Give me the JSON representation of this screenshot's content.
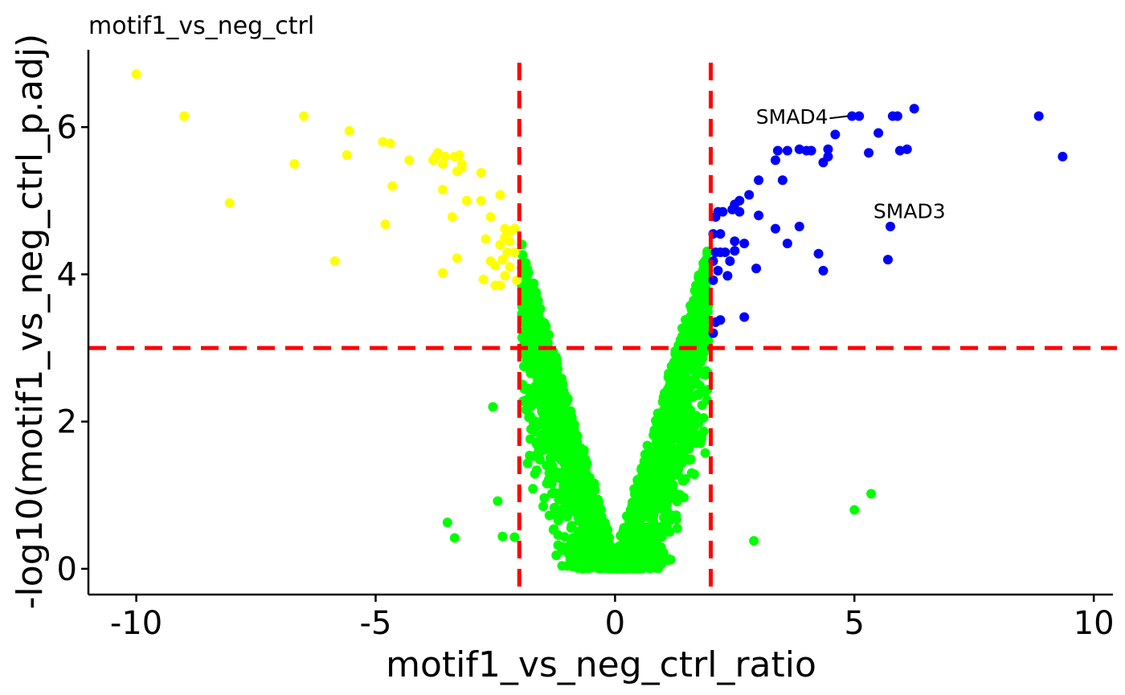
{
  "chart_data": {
    "type": "scatter",
    "title": "motif1_vs_neg_ctrl",
    "xlabel": "motif1_vs_neg_ctrl_ratio",
    "ylabel": "-log10(motif1_vs_neg_ctrl_p.adj)",
    "xlim": [
      -11,
      10.4
    ],
    "ylim": [
      -0.35,
      7.05
    ],
    "xticks": [
      -10,
      -5,
      0,
      5,
      10
    ],
    "xtick_labels": [
      "-10",
      "-5",
      "0",
      "5",
      "10"
    ],
    "yticks": [
      0,
      2,
      4,
      6
    ],
    "ytick_labels": [
      "0",
      "2",
      "4",
      "6"
    ],
    "grid": false,
    "legend": "none",
    "thresholds": {
      "x": [
        -2,
        2
      ],
      "y": 3,
      "color": "#ff0000",
      "style": "dashed"
    },
    "colors": {
      "down": "#ffff00",
      "up": "#0000ff",
      "ns": "#00ff00"
    },
    "series": [
      {
        "group": "down",
        "color": "#ffff00",
        "points": [
          [
            -10.0,
            6.72
          ],
          [
            -9.0,
            6.15
          ],
          [
            -6.5,
            6.15
          ],
          [
            -5.55,
            5.95
          ],
          [
            -6.7,
            5.5
          ],
          [
            -5.6,
            5.62
          ],
          [
            -8.05,
            4.97
          ],
          [
            -5.85,
            4.18
          ],
          [
            -4.7,
            5.78
          ],
          [
            -4.85,
            5.8
          ],
          [
            -4.3,
            5.55
          ],
          [
            -4.8,
            4.68
          ],
          [
            -4.65,
            5.2
          ],
          [
            -3.75,
            5.6
          ],
          [
            -3.7,
            5.65
          ],
          [
            -3.55,
            5.6
          ],
          [
            -3.8,
            5.55
          ],
          [
            -3.6,
            5.5
          ],
          [
            -3.35,
            5.6
          ],
          [
            -3.25,
            5.62
          ],
          [
            -3.2,
            5.5
          ],
          [
            -3.3,
            5.4
          ],
          [
            -3.2,
            5.45
          ],
          [
            -2.8,
            5.38
          ],
          [
            -3.6,
            5.15
          ],
          [
            -3.1,
            5.0
          ],
          [
            -2.4,
            5.08
          ],
          [
            -2.8,
            5.0
          ],
          [
            -3.4,
            4.78
          ],
          [
            -2.6,
            4.78
          ],
          [
            -2.3,
            4.62
          ],
          [
            -2.2,
            4.58
          ],
          [
            -2.1,
            4.62
          ],
          [
            -2.3,
            4.5
          ],
          [
            -2.2,
            4.45
          ],
          [
            -2.7,
            4.48
          ],
          [
            -2.4,
            4.4
          ],
          [
            -2.25,
            4.3
          ],
          [
            -2.1,
            4.3
          ],
          [
            -3.3,
            4.22
          ],
          [
            -2.6,
            4.18
          ],
          [
            -2.35,
            4.2
          ],
          [
            -2.2,
            4.1
          ],
          [
            -2.5,
            4.12
          ],
          [
            -3.6,
            4.02
          ],
          [
            -2.4,
            3.85
          ],
          [
            -2.5,
            3.85
          ],
          [
            -2.75,
            3.93
          ],
          [
            -2.3,
            3.98
          ],
          [
            -2.05,
            3.92
          ]
        ]
      },
      {
        "group": "up",
        "color": "#0000ff",
        "points": [
          [
            4.95,
            6.15
          ],
          [
            5.1,
            6.15
          ],
          [
            5.8,
            6.15
          ],
          [
            5.9,
            6.15
          ],
          [
            6.25,
            6.25
          ],
          [
            8.85,
            6.15
          ],
          [
            9.35,
            5.6
          ],
          [
            5.5,
            5.92
          ],
          [
            4.6,
            5.9
          ],
          [
            5.3,
            5.65
          ],
          [
            5.95,
            5.68
          ],
          [
            6.1,
            5.7
          ],
          [
            3.4,
            5.68
          ],
          [
            3.6,
            5.68
          ],
          [
            3.85,
            5.7
          ],
          [
            4.0,
            5.68
          ],
          [
            4.1,
            5.68
          ],
          [
            4.45,
            5.7
          ],
          [
            4.45,
            5.6
          ],
          [
            4.35,
            5.52
          ],
          [
            3.35,
            5.55
          ],
          [
            3.0,
            5.28
          ],
          [
            2.8,
            5.08
          ],
          [
            2.6,
            5.0
          ],
          [
            3.5,
            5.28
          ],
          [
            2.5,
            4.95
          ],
          [
            2.45,
            4.88
          ],
          [
            2.6,
            4.85
          ],
          [
            2.15,
            4.85
          ],
          [
            2.25,
            4.85
          ],
          [
            2.1,
            4.78
          ],
          [
            3.0,
            4.8
          ],
          [
            3.85,
            4.65
          ],
          [
            3.35,
            4.62
          ],
          [
            2.05,
            4.55
          ],
          [
            2.2,
            4.55
          ],
          [
            2.7,
            4.42
          ],
          [
            2.5,
            4.45
          ],
          [
            3.6,
            4.42
          ],
          [
            4.25,
            4.28
          ],
          [
            2.1,
            4.3
          ],
          [
            2.2,
            4.3
          ],
          [
            2.3,
            4.3
          ],
          [
            2.4,
            4.18
          ],
          [
            2.05,
            4.18
          ],
          [
            2.95,
            4.08
          ],
          [
            4.35,
            4.05
          ],
          [
            2.15,
            4.05
          ],
          [
            2.35,
            3.98
          ],
          [
            2.05,
            3.92
          ],
          [
            2.7,
            3.42
          ],
          [
            2.2,
            3.38
          ],
          [
            2.1,
            3.35
          ],
          [
            2.05,
            3.2
          ],
          [
            5.75,
            4.65
          ],
          [
            5.7,
            4.2
          ],
          [
            2.5,
            4.32
          ]
        ]
      }
    ],
    "labels": [
      {
        "text": "SMAD4",
        "x": 4.95,
        "y": 6.15,
        "label_x": 4.45,
        "label_y": 6.12
      },
      {
        "text": "SMAD3",
        "x": 5.75,
        "y": 4.65,
        "label_x": 6.15,
        "label_y": 4.84
      }
    ]
  }
}
